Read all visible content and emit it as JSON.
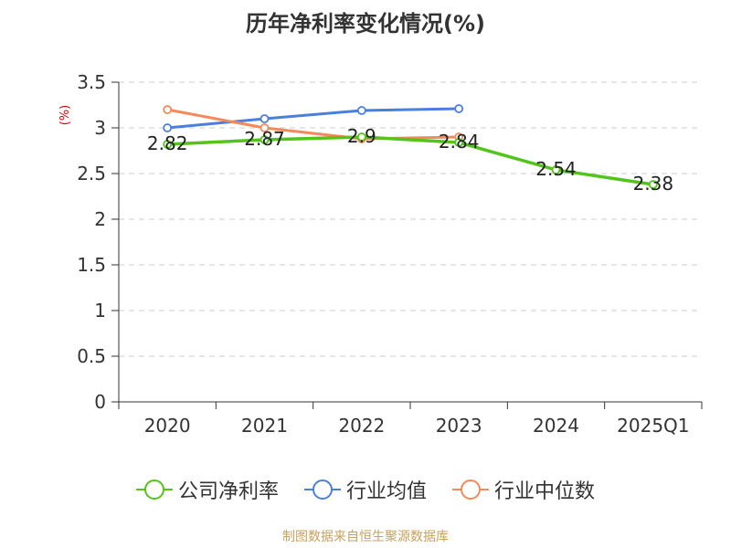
{
  "chart_data": {
    "type": "line",
    "title": "历年净利率变化情况(%)",
    "ylabel": "(%)",
    "categories": [
      "2020",
      "2021",
      "2022",
      "2023",
      "2024",
      "2025Q1"
    ],
    "ylim": [
      0,
      3.5
    ],
    "yticks": [
      "0",
      "0.5",
      "1",
      "1.5",
      "2",
      "2.5",
      "3",
      "3.5"
    ],
    "grid": true,
    "legend_position": "bottom",
    "series": [
      {
        "name": "公司净利率",
        "color": "#52c41a",
        "values": [
          2.82,
          2.87,
          2.9,
          2.84,
          2.54,
          2.38
        ],
        "labels": [
          "2.82",
          "2.87",
          "2.9",
          "2.84",
          "2.54",
          "2.38"
        ]
      },
      {
        "name": "行业均值",
        "color": "#4a7fde",
        "values": [
          3.0,
          3.1,
          3.19,
          3.21,
          null,
          null
        ]
      },
      {
        "name": "行业中位数",
        "color": "#f5895a",
        "values": [
          3.2,
          3.0,
          2.88,
          2.9,
          null,
          null
        ]
      }
    ]
  },
  "source_note": "制图数据来自恒生聚源数据库"
}
